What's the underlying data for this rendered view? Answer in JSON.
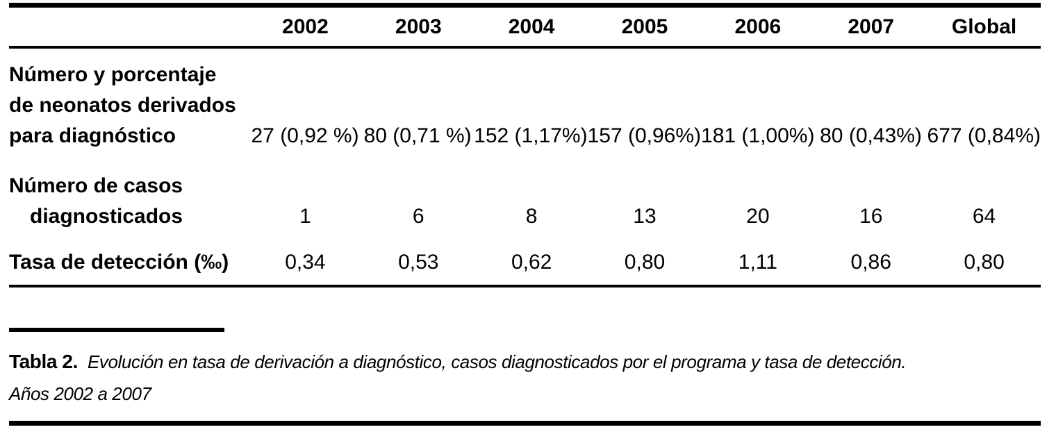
{
  "table": {
    "column_headers": [
      "2002",
      "2003",
      "2004",
      "2005",
      "2006",
      "2007",
      "Global"
    ],
    "rows": [
      {
        "label_lines": [
          "Número y porcentaje",
          "de neonatos derivados",
          "para diagnóstico"
        ],
        "values": [
          "27 (0,92 %)",
          "80 (0,71 %)",
          "152 (1,17%)",
          "157 (0,96%)",
          "181 (1,00%)",
          "80 (0,43%)",
          "677 (0,84%)"
        ]
      },
      {
        "label_lines": [
          "Número de casos",
          "diagnosticados"
        ],
        "values": [
          "1",
          "6",
          "8",
          "13",
          "20",
          "16",
          "64"
        ]
      },
      {
        "label_lines": [
          "Tasa de detección (‰)"
        ],
        "values": [
          "0,34",
          "0,53",
          "0,62",
          "0,80",
          "1,11",
          "0,86",
          "0,80"
        ]
      }
    ]
  },
  "caption": {
    "label": "Tabla 2.",
    "line1": "Evolución en tasa de derivación a diagnóstico, casos diagnosticados por el programa y tasa de detección.",
    "line2": "Años 2002 a 2007"
  },
  "colors": {
    "text": "#000000",
    "background": "#ffffff",
    "rule": "#000000"
  }
}
